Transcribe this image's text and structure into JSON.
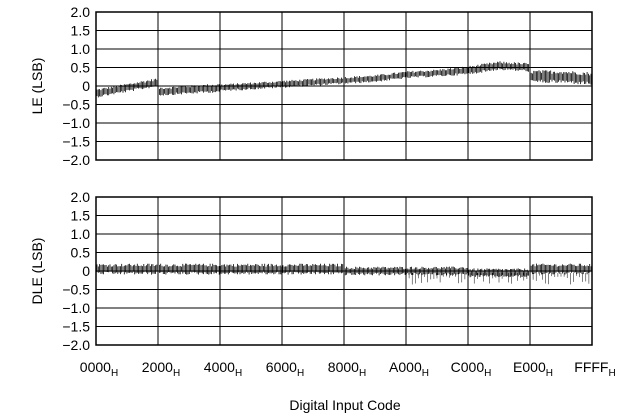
{
  "chart_data": [
    {
      "type": "line",
      "panel": "top",
      "ylabel": "LE (LSB)",
      "ylim": [
        -2.0,
        2.0
      ],
      "y_ticks": [
        "2.0",
        "1.5",
        "1.0",
        "0.5",
        "0",
        "−0.5",
        "−1.0",
        "−1.5",
        "−2.0"
      ],
      "y_tick_values": [
        2.0,
        1.5,
        1.0,
        0.5,
        0,
        -0.5,
        -1.0,
        -1.5,
        -2.0
      ],
      "xlim": [
        0,
        65535
      ],
      "grid": true,
      "series": [
        {
          "x": [
            0,
            4096,
            8191,
            8192,
            12288,
            16383,
            16384,
            20480,
            24576,
            28672,
            32768,
            36864,
            40960,
            45056,
            49152,
            53248,
            57343,
            57344,
            61440,
            65535
          ],
          "center": [
            -0.2,
            -0.05,
            0.1,
            -0.15,
            -0.1,
            -0.05,
            -0.05,
            0.0,
            0.05,
            0.1,
            0.15,
            0.2,
            0.3,
            0.35,
            0.42,
            0.55,
            0.5,
            0.25,
            0.25,
            0.2
          ],
          "spread": [
            0.12,
            0.12,
            0.12,
            0.12,
            0.12,
            0.12,
            0.1,
            0.1,
            0.1,
            0.1,
            0.1,
            0.1,
            0.1,
            0.1,
            0.12,
            0.12,
            0.12,
            0.18,
            0.18,
            0.18
          ],
          "color": "#000000"
        }
      ]
    },
    {
      "type": "line",
      "panel": "bottom",
      "ylabel": "DLE (LSB)",
      "xlabel": "Digital Input Code",
      "ylim": [
        -2.0,
        2.0
      ],
      "y_ticks": [
        "2.0",
        "1.5",
        "1.0",
        "0.5",
        "0",
        "−0.5",
        "−1.0",
        "−1.5",
        "−2.0"
      ],
      "y_tick_values": [
        2.0,
        1.5,
        1.0,
        0.5,
        0,
        -0.5,
        -1.0,
        -1.5,
        -2.0
      ],
      "xlim": [
        0,
        65535
      ],
      "x_tick_values": [
        0,
        8192,
        16384,
        24576,
        32768,
        40960,
        49152,
        57344,
        65535
      ],
      "x_ticks": [
        {
          "main": "0000",
          "sub": "H"
        },
        {
          "main": "2000",
          "sub": "H"
        },
        {
          "main": "4000",
          "sub": "H"
        },
        {
          "main": "6000",
          "sub": "H"
        },
        {
          "main": "8000",
          "sub": "H"
        },
        {
          "main": "A000",
          "sub": "H"
        },
        {
          "main": "C000",
          "sub": "H"
        },
        {
          "main": "E000",
          "sub": "H"
        },
        {
          "main": "FFFF",
          "sub": "H"
        }
      ],
      "grid": true,
      "series": [
        {
          "x": [
            0,
            16383,
            16384,
            32767,
            32768,
            40959,
            40960,
            49151,
            49152,
            57343,
            57344,
            65535
          ],
          "center": [
            0.05,
            0.05,
            0.05,
            0.05,
            0.0,
            0.0,
            0.0,
            0.0,
            -0.05,
            -0.05,
            0.05,
            0.05
          ],
          "spread": [
            0.15,
            0.15,
            0.15,
            0.15,
            0.12,
            0.12,
            0.12,
            0.12,
            0.12,
            0.12,
            0.15,
            0.15
          ],
          "color": "#000000"
        }
      ],
      "spikes": [
        {
          "x": 57344,
          "y": -0.65
        },
        {
          "x": 40960,
          "y": 0.3
        },
        {
          "x": 49152,
          "y": 0.2
        }
      ]
    }
  ]
}
